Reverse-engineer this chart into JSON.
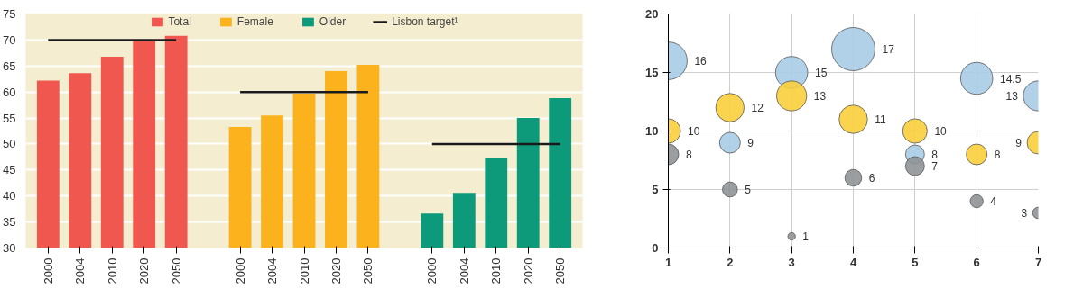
{
  "chart_data": [
    {
      "type": "bar",
      "categories": [
        "2000",
        "2004",
        "2010",
        "2020",
        "2050",
        null,
        "2000",
        "2004",
        "2010",
        "2020",
        "2050",
        null,
        "2000",
        "2004",
        "2010",
        "2020",
        "2050"
      ],
      "series": [
        {
          "name": "Total",
          "color": "#f0584f",
          "values": [
            62.2,
            63.6,
            66.8,
            70,
            70.8,
            null,
            null,
            null,
            null,
            null,
            null,
            null,
            null,
            null,
            null,
            null,
            null
          ]
        },
        {
          "name": "Female",
          "color": "#fbb21c",
          "values": [
            null,
            null,
            null,
            null,
            null,
            null,
            53.3,
            55.5,
            59.7,
            64,
            65.2,
            null,
            null,
            null,
            null,
            null,
            null
          ]
        },
        {
          "name": "Older",
          "color": "#0d9a7a",
          "values": [
            null,
            null,
            null,
            null,
            null,
            null,
            null,
            null,
            null,
            null,
            null,
            null,
            36.6,
            40.6,
            47.2,
            55,
            58.8
          ]
        },
        {
          "name": "Lisbon target¹",
          "type": "line",
          "color": "#1a1a1a",
          "values": [
            70,
            70,
            70,
            70,
            70,
            null,
            60,
            60,
            60,
            60,
            60,
            null,
            50,
            50,
            50,
            50,
            50
          ]
        }
      ],
      "ylim": [
        30,
        75
      ],
      "yticks": [
        30,
        35,
        40,
        45,
        50,
        55,
        60,
        65,
        70,
        75
      ],
      "grid": "y",
      "legend": "top"
    },
    {
      "type": "bubble",
      "x": [
        1,
        2,
        3,
        4,
        5,
        6,
        7
      ],
      "series": [
        {
          "color": "#a9cce6",
          "values": [
            16,
            9,
            15,
            17,
            8,
            14.5,
            13
          ],
          "sizes": [
            0.76,
            0.23,
            0.55,
            1,
            0.19,
            0.55,
            0.48
          ]
        },
        {
          "color": "#f9cf3c",
          "values": [
            10,
            12,
            13,
            11,
            10,
            8,
            9
          ],
          "sizes": [
            0.32,
            0.43,
            0.48,
            0.43,
            0.32,
            0.23,
            0.27
          ]
        },
        {
          "color": "#8f9497",
          "values": [
            8,
            5,
            1,
            6,
            7,
            4,
            3
          ],
          "sizes": [
            0.23,
            0.12,
            0.03,
            0.15,
            0.19,
            0.09,
            0.07
          ]
        }
      ],
      "xlim": [
        1,
        7
      ],
      "xticks": [
        1,
        2,
        3,
        4,
        5,
        6,
        7
      ],
      "ylim": [
        0,
        20
      ],
      "yticks": [
        0,
        5,
        10,
        15,
        20
      ],
      "grid": true,
      "data_labels": true
    }
  ]
}
